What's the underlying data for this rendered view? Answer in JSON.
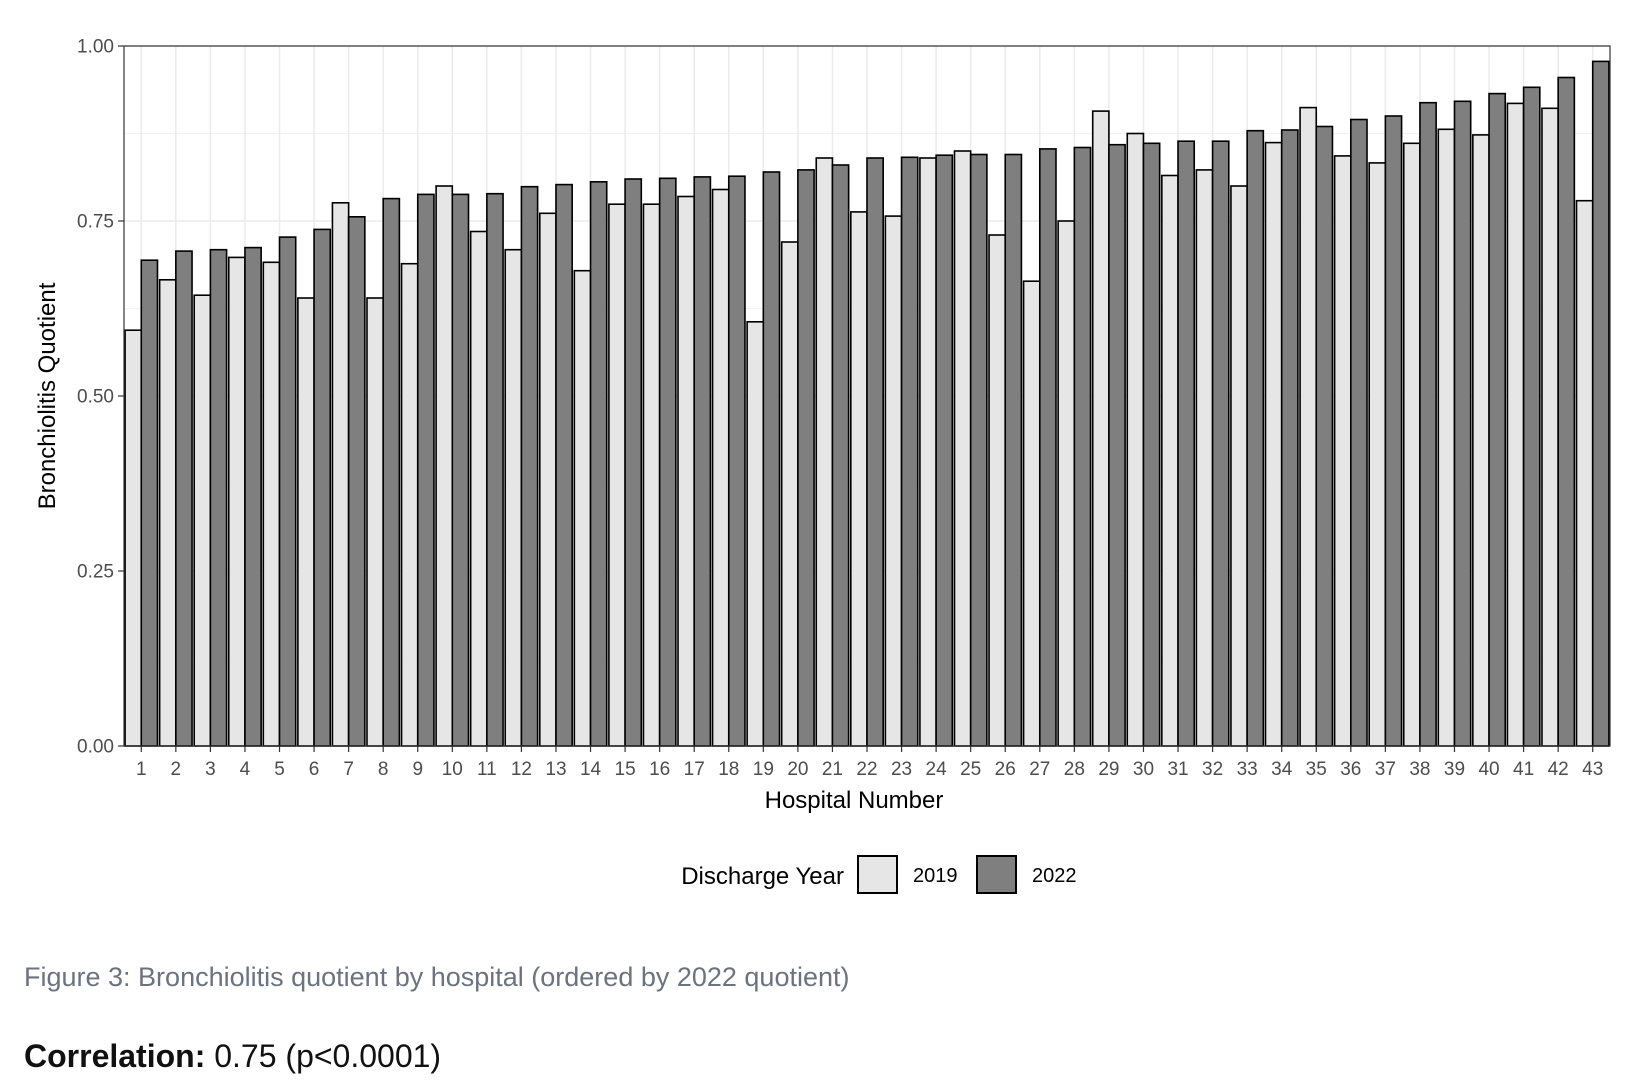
{
  "chart_data": {
    "type": "bar",
    "title": "",
    "xlabel": "Hospital Number",
    "ylabel": "Bronchiolitis Quotient",
    "ylim": [
      0,
      1
    ],
    "yticks": [
      "0.00",
      "0.25",
      "0.50",
      "0.75",
      "1.00"
    ],
    "grid": true,
    "legend": {
      "title": "Discharge Year",
      "position": "bottom"
    },
    "categories": [
      "1",
      "2",
      "3",
      "4",
      "5",
      "6",
      "7",
      "8",
      "9",
      "10",
      "11",
      "12",
      "13",
      "14",
      "15",
      "16",
      "17",
      "18",
      "19",
      "20",
      "21",
      "22",
      "23",
      "24",
      "25",
      "26",
      "27",
      "28",
      "29",
      "30",
      "31",
      "32",
      "33",
      "34",
      "35",
      "36",
      "37",
      "38",
      "39",
      "40",
      "41",
      "42",
      "43"
    ],
    "series": [
      {
        "name": "2019",
        "color": "#e6e6e6",
        "values": [
          0.594,
          0.666,
          0.644,
          0.698,
          0.691,
          0.64,
          0.776,
          0.64,
          0.689,
          0.8,
          0.735,
          0.709,
          0.761,
          0.679,
          0.774,
          0.774,
          0.785,
          0.795,
          0.606,
          0.72,
          0.84,
          0.763,
          0.757,
          0.84,
          0.85,
          0.73,
          0.664,
          0.75,
          0.907,
          0.875,
          0.815,
          0.823,
          0.8,
          0.862,
          0.912,
          0.843,
          0.833,
          0.861,
          0.881,
          0.873,
          0.918,
          0.911,
          0.779
        ]
      },
      {
        "name": "2022",
        "color": "#7f7f7f",
        "values": [
          0.694,
          0.707,
          0.709,
          0.712,
          0.727,
          0.738,
          0.756,
          0.782,
          0.788,
          0.788,
          0.789,
          0.799,
          0.802,
          0.806,
          0.81,
          0.811,
          0.813,
          0.814,
          0.82,
          0.823,
          0.83,
          0.84,
          0.841,
          0.844,
          0.845,
          0.845,
          0.853,
          0.855,
          0.859,
          0.861,
          0.864,
          0.864,
          0.879,
          0.88,
          0.885,
          0.895,
          0.9,
          0.919,
          0.921,
          0.932,
          0.941,
          0.955,
          0.978
        ]
      }
    ]
  },
  "caption": "Figure 3: Bronchiolitis quotient by hospital (ordered by 2022 quotient)",
  "correlation": {
    "label": "Correlation:",
    "value": "0.75 (p<0.0001)"
  }
}
